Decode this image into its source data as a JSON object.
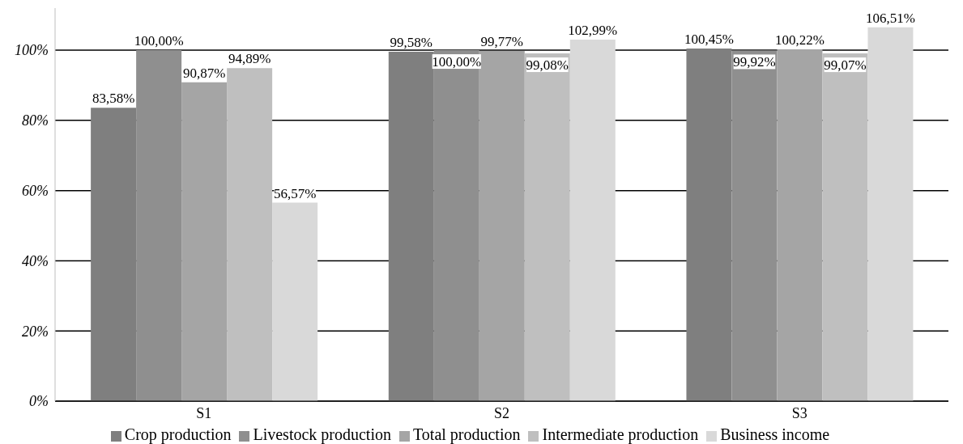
{
  "chart_data": {
    "type": "bar",
    "categories": [
      "S1",
      "S2",
      "S3"
    ],
    "series": [
      {
        "name": "Crop production",
        "color": "#7f7f7f",
        "values": [
          83.58,
          99.58,
          100.45
        ],
        "value_labels": [
          "83,58%",
          "99,58%",
          "100,45%"
        ]
      },
      {
        "name": "Livestock production",
        "color": "#8f8f8f",
        "values": [
          100.0,
          100.0,
          99.92
        ],
        "value_labels": [
          "100,00%",
          "100,00%",
          "99,92%"
        ]
      },
      {
        "name": "Total production",
        "color": "#a5a5a5",
        "values": [
          90.87,
          99.77,
          100.22
        ],
        "value_labels": [
          "90,87%",
          "99,77%",
          "100,22%"
        ]
      },
      {
        "name": "Intermediate production",
        "color": "#bfbfbf",
        "values": [
          94.89,
          99.08,
          99.07
        ],
        "value_labels": [
          "94,89%",
          "99,08%",
          "99,07%"
        ]
      },
      {
        "name": "Business income",
        "color": "#d9d9d9",
        "values": [
          56.57,
          102.99,
          106.51
        ],
        "value_labels": [
          "56,57%",
          "102,99%",
          "106,51%"
        ]
      }
    ],
    "ylim": [
      0,
      112
    ],
    "yticks": [
      {
        "value": 0,
        "label": "0%"
      },
      {
        "value": 20,
        "label": "20%"
      },
      {
        "value": 40,
        "label": "40%"
      },
      {
        "value": 60,
        "label": "60%"
      },
      {
        "value": 80,
        "label": "80%"
      },
      {
        "value": 100,
        "label": "100%"
      }
    ],
    "grid": "y",
    "legend": "bottom"
  }
}
